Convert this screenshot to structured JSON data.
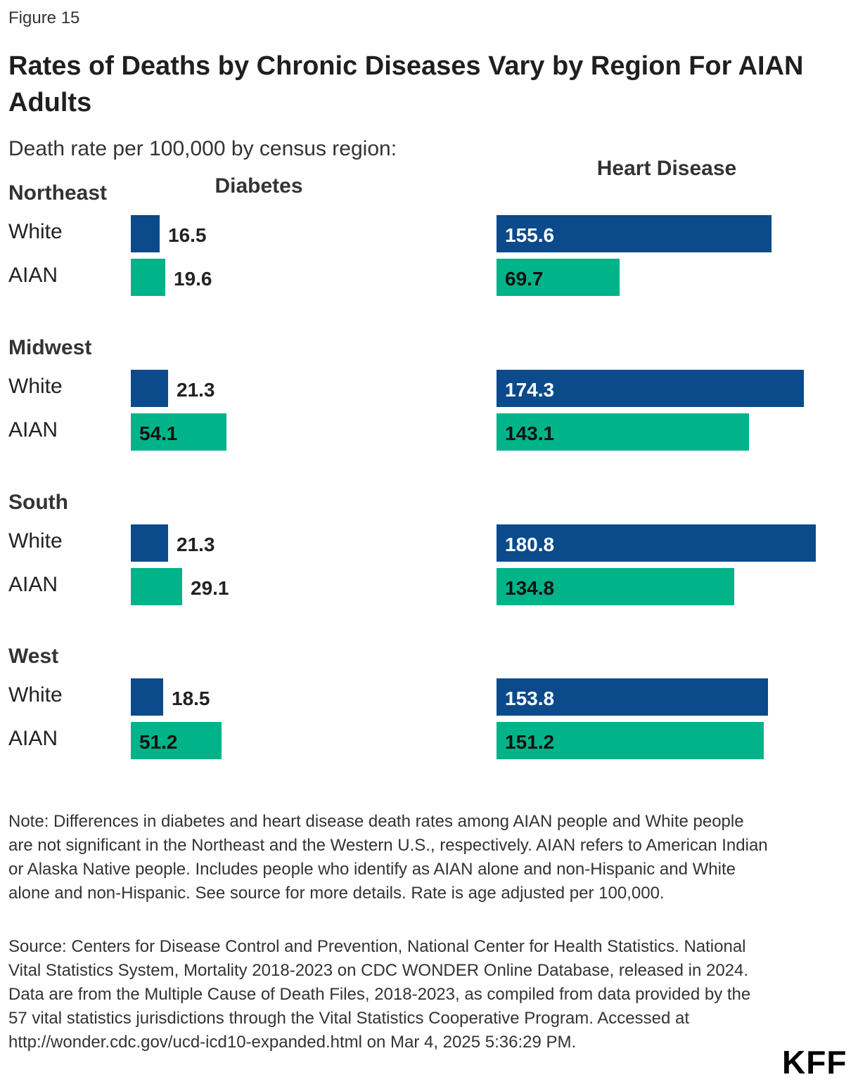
{
  "figure_label": "Figure 15",
  "brand_logo": "KFF",
  "colors": {
    "white": "#0b4a8b",
    "aian": "#00b388"
  },
  "chart_data": {
    "type": "bar",
    "orientation": "horizontal",
    "title": "Rates of Deaths by Chronic Diseases Vary by Region For AIAN Adults",
    "subtitle": "Death rate per 100,000 by census region:",
    "panels": [
      "Diabetes",
      "Heart Disease"
    ],
    "groups": [
      "Northeast",
      "Midwest",
      "South",
      "West"
    ],
    "row_labels": [
      "White",
      "AIAN"
    ],
    "series": [
      {
        "name": "White",
        "diabetes": [
          16.5,
          21.3,
          21.3,
          18.5
        ],
        "heart_disease": [
          155.6,
          174.3,
          180.8,
          153.8
        ]
      },
      {
        "name": "AIAN",
        "diabetes": [
          19.6,
          54.1,
          29.1,
          51.2
        ],
        "heart_disease": [
          69.7,
          143.1,
          134.8,
          151.2
        ]
      }
    ],
    "grid": false,
    "legend": "none"
  },
  "note": "Note: Differences in diabetes and heart disease death rates among AIAN people and White people are not significant in the Northeast and the Western U.S., respectively. AIAN refers to American Indian or Alaska Native people. Includes people who identify as AIAN alone and non-Hispanic and White alone and non-Hispanic. See source for more details. Rate is age adjusted per 100,000.",
  "source": "Source: Centers for Disease Control and Prevention, National Center for Health Statistics. National Vital Statistics System, Mortality 2018-2023 on CDC WONDER Online Database, released in 2024. Data are from the Multiple Cause of Death Files, 2018-2023, as compiled from data provided by the 57 vital statistics jurisdictions through the Vital Statistics Cooperative Program. Accessed at http://wonder.cdc.gov/ucd-icd10-expanded.html on Mar 4, 2025 5:36:29 PM."
}
